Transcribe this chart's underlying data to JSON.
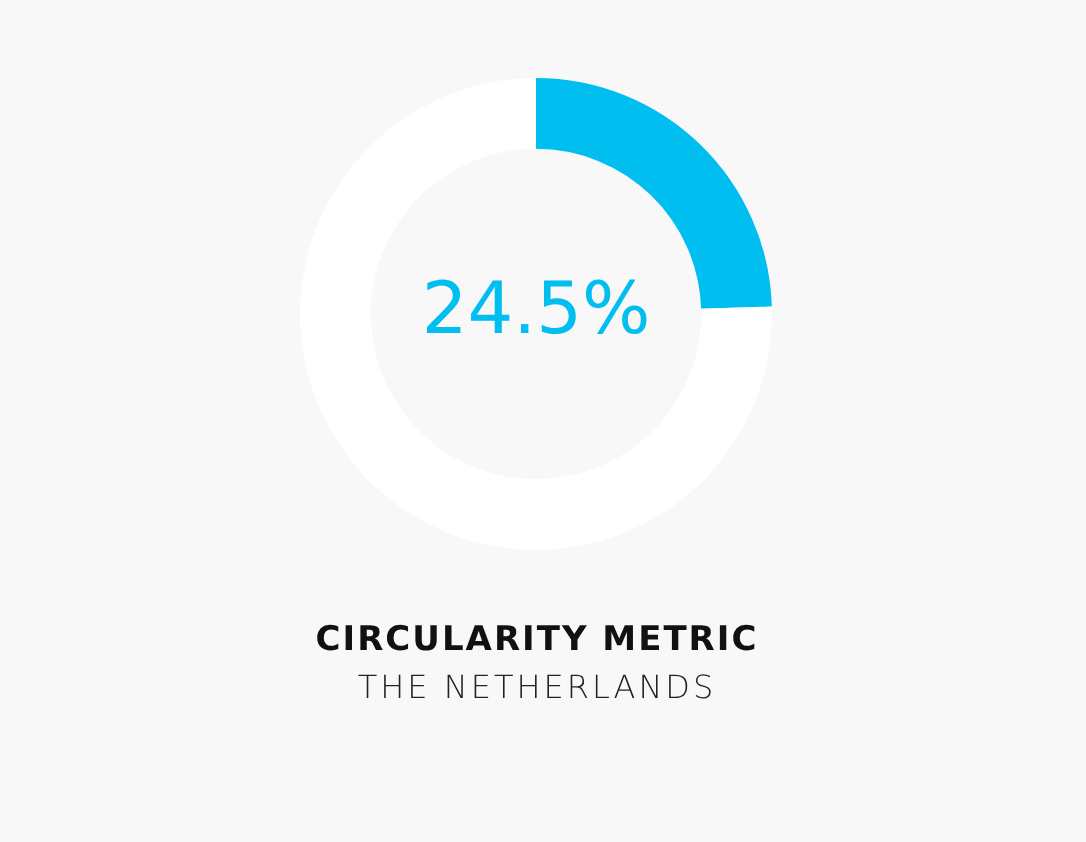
{
  "chart_data": {
    "type": "donut",
    "title": "CIRCULARITY METRIC",
    "subtitle": "THE NETHERLANDS",
    "categories": [
      null,
      null
    ],
    "values": [
      24.5,
      75.5
    ],
    "colors": [
      "#00bef0",
      "#ffffff"
    ],
    "annotations": [
      "24.5%"
    ],
    "legend": false
  }
}
